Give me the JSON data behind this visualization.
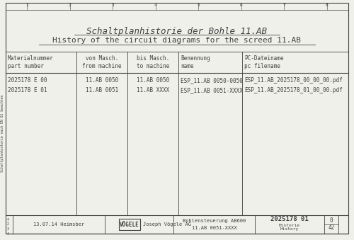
{
  "title1": "Schaltplanhistorie der Bohle 11.AB",
  "title2": "History of the circuit diagrams for the screed 11.AB",
  "bg_color": "#f0f0eb",
  "border_color": "#404040",
  "col_headers": [
    [
      "Materialnummer",
      "part number"
    ],
    [
      "von Masch.",
      "from machine"
    ],
    [
      "bis Masch.",
      "to machine"
    ],
    [
      "Benennung",
      "name"
    ],
    [
      "PC-Dateiname",
      "pc filename"
    ]
  ],
  "rows": [
    [
      "2025178 E 00",
      "11.AB 0050",
      "11.AB 0050",
      "ESP_11.AB 0050-0050",
      "ESP_11.AB_2025178_00_00_00.pdf"
    ],
    [
      "2025178 E 01",
      "11.AB 0051",
      "11.AB XXXX",
      "ESP_11.AB 0051-XXXX",
      "ESP_11.AB_2025178_01_00_00.pdf"
    ]
  ],
  "top_ruler_ticks": [
    "1",
    "2",
    "3",
    "4",
    "5",
    "6",
    "7",
    "8"
  ],
  "footer_date": "13.07.14 Heimsber",
  "footer_logo": "VÖGELE",
  "footer_company": "Joseph Vögele AG",
  "footer_doc1": "Bohlensteuerung AB600",
  "footer_doc2": "11.AB 0051-XXXX",
  "footer_ref1": "2025178 01",
  "footer_ref2": "Historie",
  "footer_ref3": "History",
  "footer_page": "0",
  "footer_total": "42",
  "side_text": "Schaltplanhistorie nach EN 61 beachten",
  "font_family": "monospace"
}
